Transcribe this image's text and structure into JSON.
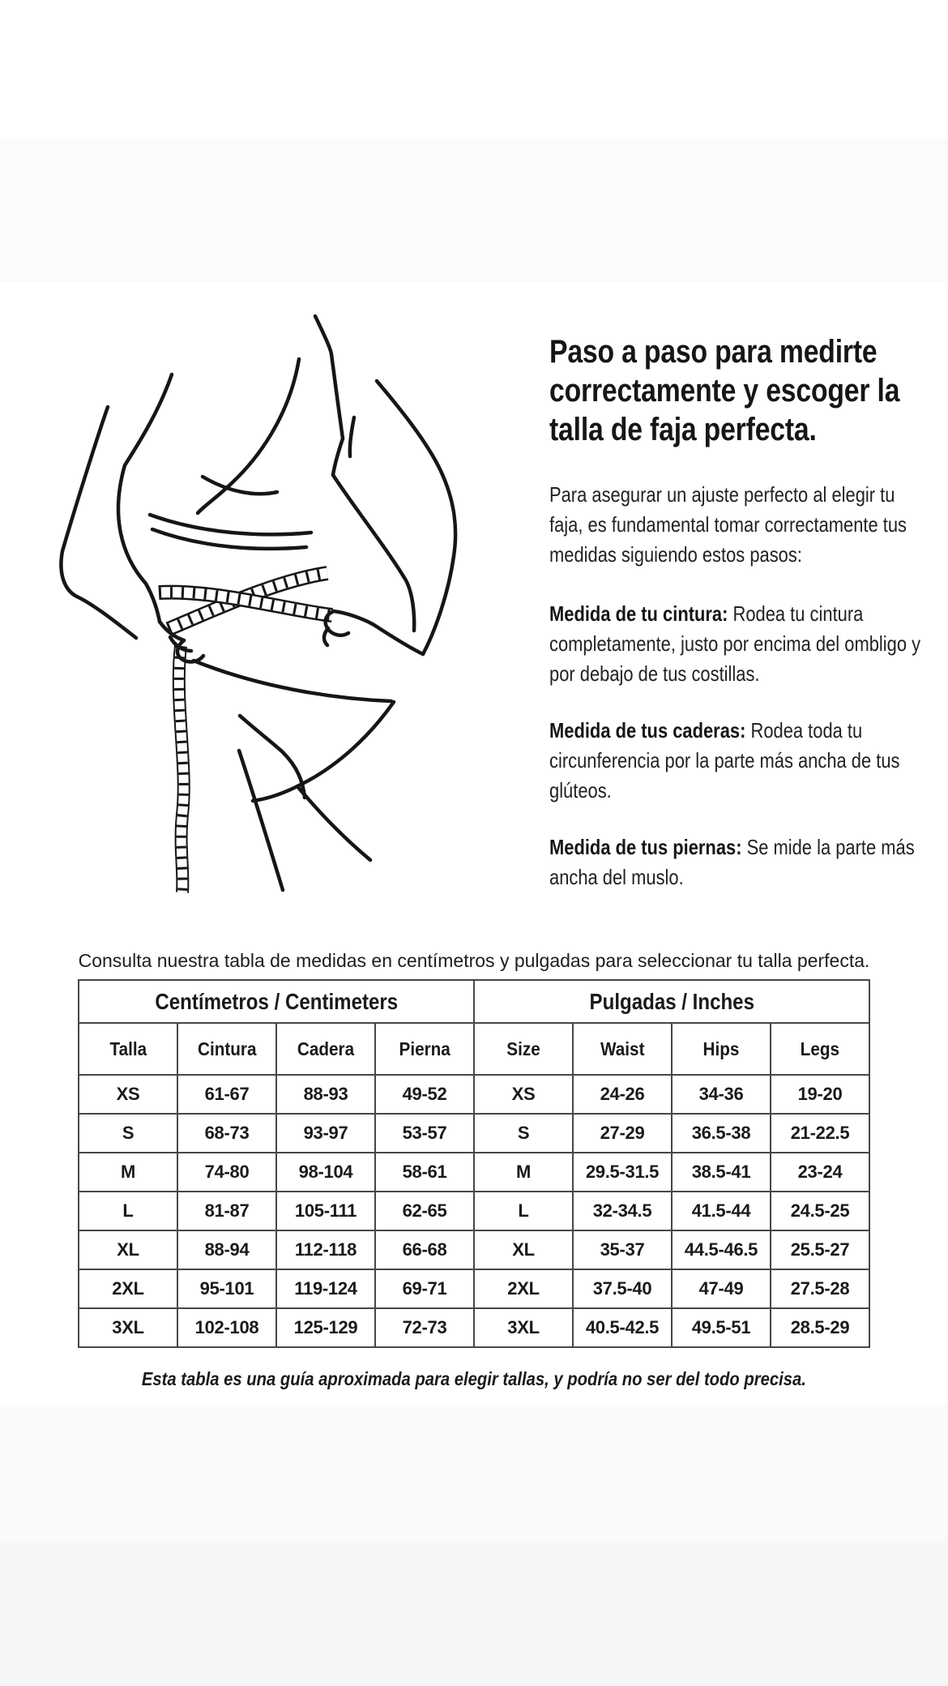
{
  "colors": {
    "background": "#ffffff",
    "top_band": "#fbfbfb",
    "bottom_band_upper": "#fafafa",
    "bottom_band_lower": "#f6f6f6",
    "text": "#1d1d1d",
    "table_border": "#474747",
    "line_art": "#161616"
  },
  "illustration": {
    "name": "woman-measuring-waist-line-drawing"
  },
  "heading": "Paso a paso para medirte correctamente y escoger la talla de faja perfecta.",
  "intro": "Para asegurar un ajuste perfecto al elegir tu faja, es fundamental tomar correctamente tus medidas siguiendo estos pasos:",
  "steps": [
    {
      "label": "Medida de tu cintura:",
      "text": " Rodea tu cintura completamente, justo por encima del ombligo y por debajo de tus costillas."
    },
    {
      "label": "Medida de tus caderas:",
      "text": " Rodea toda tu circunferencia por la parte más ancha de tus glúteos."
    },
    {
      "label": "Medida de tus piernas:",
      "text": " Se mide la parte más ancha del muslo."
    }
  ],
  "table_intro": "Consulta nuestra tabla de medidas en centímetros y pulgadas para seleccionar tu talla perfecta.",
  "size_table": {
    "group_headers": [
      "Centímetros / Centimeters",
      "Pulgadas / Inches"
    ],
    "columns": [
      "Talla",
      "Cintura",
      "Cadera",
      "Pierna",
      "Size",
      "Waist",
      "Hips",
      "Legs"
    ],
    "rows": [
      [
        "XS",
        "61-67",
        "88-93",
        "49-52",
        "XS",
        "24-26",
        "34-36",
        "19-20"
      ],
      [
        "S",
        "68-73",
        "93-97",
        "53-57",
        "S",
        "27-29",
        "36.5-38",
        "21-22.5"
      ],
      [
        "M",
        "74-80",
        "98-104",
        "58-61",
        "M",
        "29.5-31.5",
        "38.5-41",
        "23-24"
      ],
      [
        "L",
        "81-87",
        "105-111",
        "62-65",
        "L",
        "32-34.5",
        "41.5-44",
        "24.5-25"
      ],
      [
        "XL",
        "88-94",
        "112-118",
        "66-68",
        "XL",
        "35-37",
        "44.5-46.5",
        "25.5-27"
      ],
      [
        "2XL",
        "95-101",
        "119-124",
        "69-71",
        "2XL",
        "37.5-40",
        "47-49",
        "27.5-28"
      ],
      [
        "3XL",
        "102-108",
        "125-129",
        "72-73",
        "3XL",
        "40.5-42.5",
        "49.5-51",
        "28.5-29"
      ]
    ]
  },
  "footnote": "Esta tabla es una guía aproximada para elegir tallas, y podría no ser del todo precisa."
}
